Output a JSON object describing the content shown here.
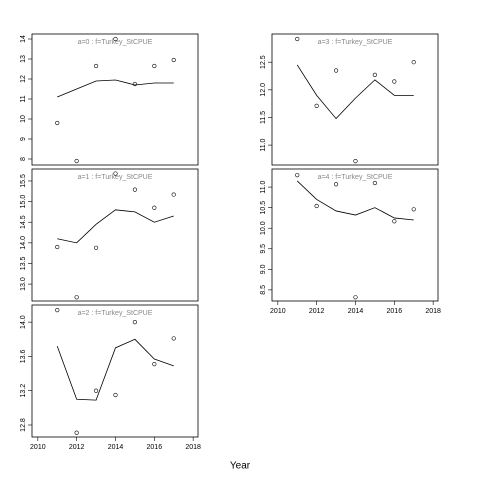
{
  "xlabel": "Year",
  "chart_data": [
    {
      "type": "line",
      "title": "a=0 : f=Turkey_StCPUE",
      "x": [
        2011,
        2012,
        2013,
        2014,
        2015,
        2016,
        2017
      ],
      "points": [
        9.8,
        7.9,
        12.65,
        14.0,
        11.75,
        12.65,
        12.95
      ],
      "fit": [
        11.1,
        11.5,
        11.9,
        11.95,
        11.7,
        11.8,
        11.8
      ],
      "xlim": [
        2009.7,
        2018.25
      ],
      "ylim": [
        7.7,
        14.25
      ],
      "yticks": [
        8,
        9,
        10,
        11,
        12,
        13,
        14
      ]
    },
    {
      "type": "line",
      "title": "a=1 : f=Turkey_StCPUE",
      "x": [
        2011,
        2012,
        2013,
        2014,
        2015,
        2016,
        2017
      ],
      "points": [
        13.9,
        12.68,
        13.88,
        15.68,
        15.29,
        14.85,
        15.17
      ],
      "fit": [
        14.1,
        14.0,
        14.45,
        14.8,
        14.75,
        14.5,
        14.65
      ],
      "xlim": [
        2009.7,
        2018.25
      ],
      "ylim": [
        12.59,
        15.79
      ],
      "yticks": [
        {
          "value": 13,
          "label": "13.0"
        },
        13.5,
        {
          "value": 14,
          "label": "14.0"
        },
        14.5,
        {
          "value": 15,
          "label": "15.0"
        },
        15.5
      ]
    },
    {
      "type": "line",
      "title": "a=2 : f=Turkey_StCPUE",
      "x": [
        2011,
        2012,
        2013,
        2014,
        2015,
        2016,
        2017
      ],
      "points": [
        14.14,
        12.71,
        13.2,
        13.15,
        14.0,
        13.51,
        13.81
      ],
      "fit": [
        13.72,
        13.1,
        13.09,
        13.7,
        13.8,
        13.57,
        13.49
      ],
      "xlim": [
        2009.7,
        2018.25
      ],
      "ylim": [
        12.66,
        14.2
      ],
      "yticks": [
        12.8,
        13.2,
        13.6,
        {
          "value": 14,
          "label": "14.0"
        }
      ],
      "xticks": [
        2010,
        2012,
        2014,
        2016,
        2018
      ]
    },
    {
      "type": "line",
      "title": "a=3 : f=Turkey_StCPUE",
      "x": [
        2011,
        2012,
        2013,
        2014,
        2015,
        2016,
        2017
      ],
      "points": [
        12.92,
        11.71,
        12.35,
        10.71,
        12.27,
        12.15,
        12.5
      ],
      "fit": [
        12.45,
        11.9,
        11.48,
        11.85,
        12.18,
        11.9,
        11.9
      ],
      "xlim": [
        2009.7,
        2018.25
      ],
      "ylim": [
        10.64,
        13.01
      ],
      "yticks": [
        {
          "value": 11,
          "label": "11.0"
        },
        11.5,
        {
          "value": 12,
          "label": "12.0"
        },
        12.5
      ]
    },
    {
      "type": "line",
      "title": "a=4 : f=Turkey_StCPUE",
      "x": [
        2011,
        2012,
        2013,
        2014,
        2015,
        2016,
        2017
      ],
      "points": [
        11.29,
        10.54,
        11.07,
        8.32,
        11.1,
        10.17,
        10.46
      ],
      "fit": [
        11.15,
        10.7,
        10.42,
        10.32,
        10.5,
        10.25,
        10.2
      ],
      "xlim": [
        2009.7,
        2018.25
      ],
      "ylim": [
        8.23,
        11.44
      ],
      "yticks": [
        8.5,
        {
          "value": 9,
          "label": "9.0"
        },
        9.5,
        {
          "value": 10,
          "label": "10.0"
        },
        10.5,
        {
          "value": 11,
          "label": "11.0"
        }
      ],
      "xticks": [
        2010,
        2012,
        2014,
        2016,
        2018
      ]
    }
  ]
}
